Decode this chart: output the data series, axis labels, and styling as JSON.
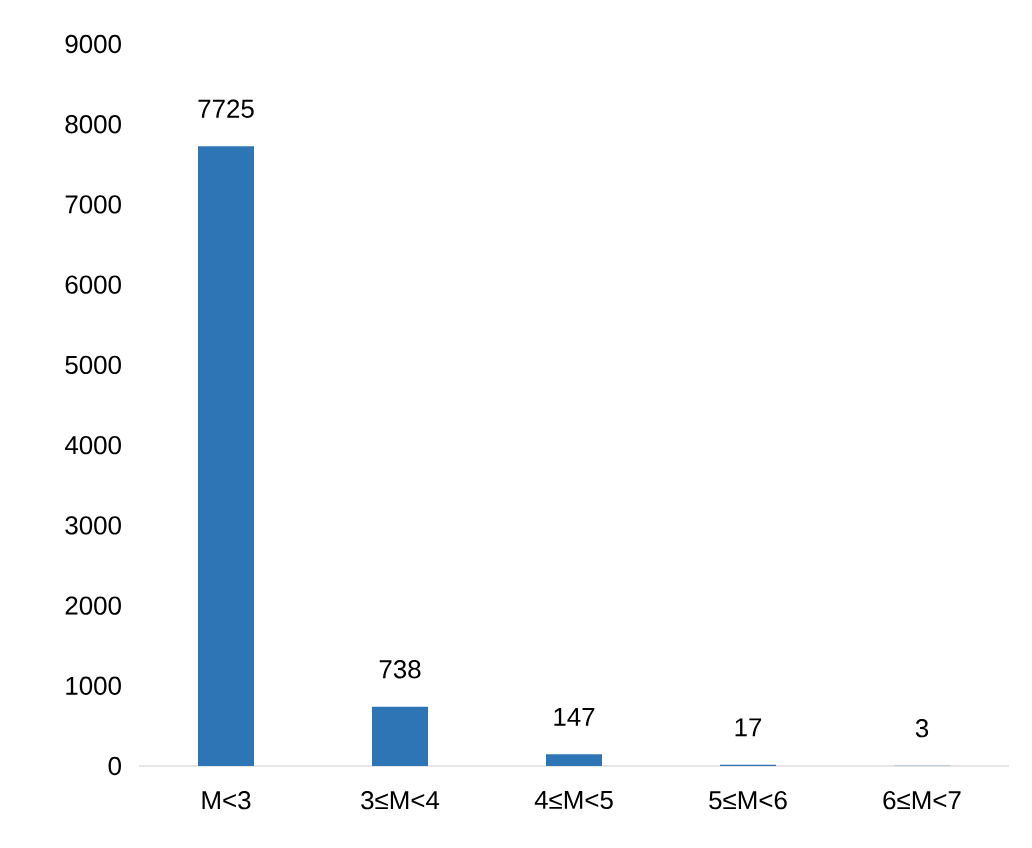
{
  "chart_data": {
    "type": "bar",
    "categories": [
      "M<3",
      "3≤M<4",
      "4≤M<5",
      "5≤M<6",
      "6≤M<7"
    ],
    "values": [
      7725,
      738,
      147,
      17,
      3
    ],
    "color": "#2e75b6",
    "ylim": [
      0,
      9000
    ],
    "yticks": [
      0,
      1000,
      2000,
      3000,
      4000,
      5000,
      6000,
      7000,
      8000,
      9000
    ],
    "data_labels": true
  }
}
